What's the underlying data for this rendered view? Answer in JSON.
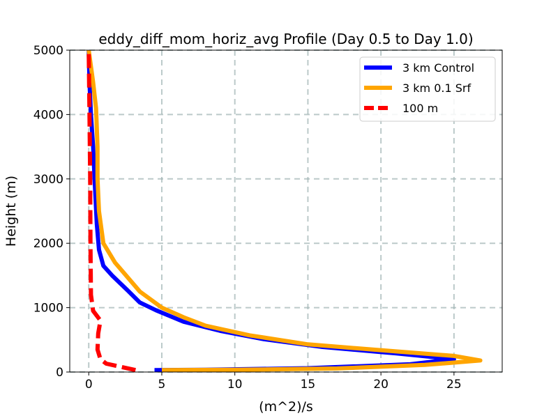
{
  "chart_data": {
    "type": "line",
    "title": "eddy_diff_mom_horiz_avg Profile (Day 0.5 to Day 1.0)",
    "xlabel": "(m^2)/s",
    "ylabel": "Height (m)",
    "xlim": [
      -1.3,
      28.3
    ],
    "ylim": [
      0,
      5000
    ],
    "xticks": [
      0,
      5,
      10,
      15,
      20,
      25
    ],
    "yticks": [
      0,
      1000,
      2000,
      3000,
      4000,
      5000
    ],
    "grid": true,
    "legend_position": "top-right",
    "series": [
      {
        "name": "3 km Control",
        "color": "#0000ff",
        "style": "solid",
        "points": [
          [
            4.5,
            30
          ],
          [
            8,
            35
          ],
          [
            15,
            60
          ],
          [
            22,
            120
          ],
          [
            25,
            200
          ],
          [
            21,
            290
          ],
          [
            16,
            390
          ],
          [
            12,
            510
          ],
          [
            9,
            640
          ],
          [
            6.5,
            780
          ],
          [
            4.6,
            960
          ],
          [
            3.5,
            1080
          ],
          [
            2.7,
            1260
          ],
          [
            1.6,
            1500
          ],
          [
            1.0,
            1650
          ],
          [
            0.7,
            1900
          ],
          [
            0.55,
            2300
          ],
          [
            0.4,
            3000
          ],
          [
            0.3,
            3500
          ],
          [
            0.15,
            4000
          ],
          [
            0.05,
            4500
          ],
          [
            0.0,
            5000
          ]
        ]
      },
      {
        "name": "3 km 0.1 Srf",
        "color": "#ffa500",
        "style": "solid",
        "points": [
          [
            5,
            30
          ],
          [
            10,
            35
          ],
          [
            17,
            55
          ],
          [
            23,
            110
          ],
          [
            26.8,
            180
          ],
          [
            25,
            250
          ],
          [
            20.5,
            330
          ],
          [
            15,
            430
          ],
          [
            11,
            570
          ],
          [
            8,
            720
          ],
          [
            6.5,
            850
          ],
          [
            5,
            1000
          ],
          [
            3.5,
            1250
          ],
          [
            1.8,
            1700
          ],
          [
            1.0,
            2000
          ],
          [
            0.7,
            2500
          ],
          [
            0.6,
            3000
          ],
          [
            0.6,
            3500
          ],
          [
            0.5,
            4100
          ],
          [
            0.3,
            4500
          ],
          [
            0.0,
            5000
          ]
        ]
      },
      {
        "name": "100 m",
        "color": "#ff0000",
        "style": "dashed",
        "points": [
          [
            3.2,
            30
          ],
          [
            2.2,
            80
          ],
          [
            1.2,
            130
          ],
          [
            0.8,
            200
          ],
          [
            0.6,
            350
          ],
          [
            0.65,
            600
          ],
          [
            0.8,
            800
          ],
          [
            0.3,
            950
          ],
          [
            0.15,
            1200
          ],
          [
            0.12,
            2000
          ],
          [
            0.1,
            3000
          ],
          [
            0.05,
            4000
          ],
          [
            0.0,
            5000
          ]
        ]
      }
    ]
  }
}
